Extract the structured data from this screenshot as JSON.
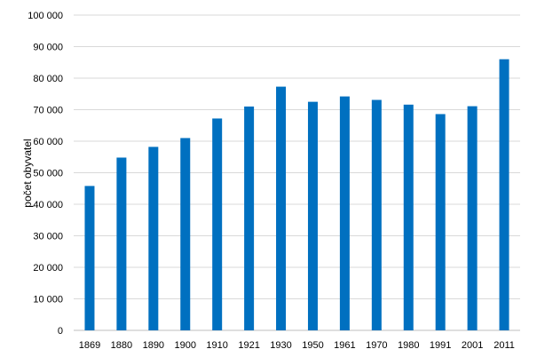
{
  "chart_data": {
    "type": "bar",
    "title": "",
    "xlabel": "",
    "ylabel": "počet obyvatel",
    "categories": [
      "1869",
      "1880",
      "1890",
      "1900",
      "1910",
      "1921",
      "1930",
      "1950",
      "1961",
      "1970",
      "1980",
      "1991",
      "2001",
      "2011"
    ],
    "values": [
      45800,
      54800,
      58200,
      61000,
      67200,
      71000,
      77300,
      72500,
      74200,
      73100,
      71600,
      68600,
      71100,
      86000
    ],
    "ylim": [
      0,
      100000
    ],
    "yticks": [
      "0",
      "10 000",
      "20 000",
      "30 000",
      "40 000",
      "50 000",
      "60 000",
      "70 000",
      "80 000",
      "90 000",
      "100 000"
    ],
    "grid": true,
    "legend": "none",
    "bar_color": "#0070c0"
  }
}
